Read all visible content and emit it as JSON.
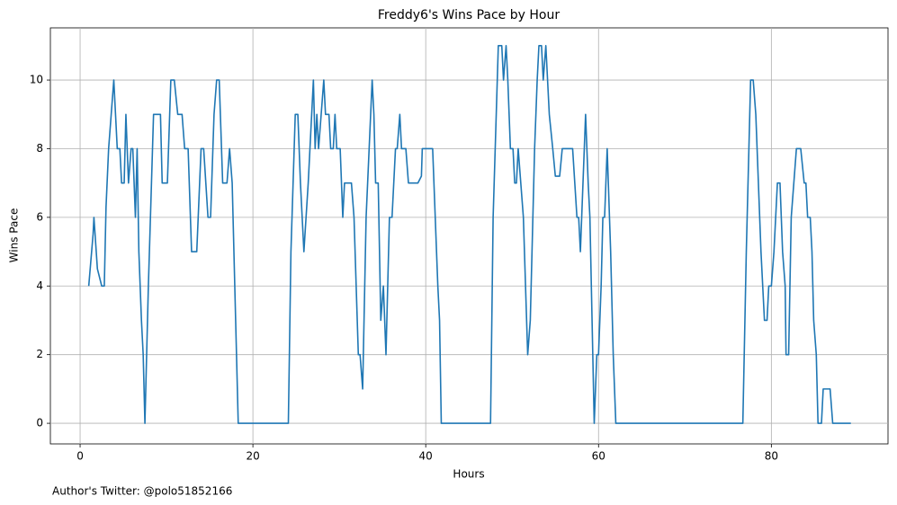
{
  "chart_data": {
    "type": "line",
    "title": "Freddy6's Wins Pace by Hour",
    "xlabel": "Hours",
    "ylabel": "Wins Pace",
    "annotation": "Author's Twitter: @polo51852166",
    "color": "#1f77b4",
    "grid": true,
    "xlim": [
      -3.44,
      93.5
    ],
    "ylim": [
      -0.6,
      11.52
    ],
    "xticks": [
      0,
      20,
      40,
      60,
      80
    ],
    "yticks": [
      0,
      2,
      4,
      6,
      8,
      10
    ],
    "x": [
      1.0,
      1.5,
      1.6,
      2.0,
      2.5,
      2.8,
      3.0,
      3.3,
      3.9,
      4.3,
      4.6,
      4.8,
      5.1,
      5.3,
      5.6,
      5.9,
      6.1,
      6.4,
      6.6,
      6.8,
      7.1,
      7.3,
      7.5,
      7.9,
      8.2,
      8.5,
      9.3,
      9.5,
      10.1,
      10.5,
      10.9,
      11.3,
      11.8,
      12.1,
      12.5,
      12.9,
      13.5,
      14.0,
      14.3,
      14.8,
      15.1,
      15.5,
      15.8,
      16.1,
      16.5,
      17.0,
      17.3,
      17.6,
      18.0,
      18.3,
      24.1,
      24.4,
      24.9,
      25.2,
      25.5,
      25.9,
      26.4,
      27.0,
      27.2,
      27.4,
      27.6,
      28.2,
      28.4,
      28.8,
      29.0,
      29.3,
      29.5,
      29.7,
      30.1,
      30.4,
      30.6,
      31.4,
      31.7,
      32.2,
      32.4,
      32.7,
      33.1,
      33.8,
      34.0,
      34.2,
      34.5,
      34.8,
      35.1,
      35.4,
      35.8,
      36.1,
      36.5,
      36.7,
      37.0,
      37.2,
      37.7,
      38.0,
      39.1,
      39.5,
      39.6,
      40.8,
      41.1,
      41.4,
      41.6,
      41.8,
      47.5,
      47.8,
      48.4,
      48.8,
      49.0,
      49.3,
      49.5,
      49.8,
      50.1,
      50.3,
      50.5,
      50.7,
      51.3,
      51.8,
      52.1,
      52.6,
      52.9,
      53.1,
      53.4,
      53.6,
      53.9,
      54.3,
      54.7,
      55.0,
      55.5,
      55.8,
      57.0,
      57.5,
      57.7,
      57.9,
      58.2,
      58.5,
      58.8,
      59.0,
      59.5,
      59.8,
      60.0,
      60.3,
      60.5,
      60.7,
      61.0,
      61.4,
      61.7,
      62.0,
      76.7,
      77.1,
      77.6,
      77.9,
      78.2,
      78.8,
      79.2,
      79.5,
      79.7,
      80.0,
      80.3,
      80.6,
      80.7,
      81.0,
      81.3,
      81.6,
      81.7,
      82.0,
      82.3,
      82.6,
      82.9,
      83.4,
      83.8,
      84.0,
      84.2,
      84.5,
      84.7,
      84.9,
      85.2,
      85.4,
      85.8,
      86.0,
      86.8,
      87.1,
      89.2
    ],
    "values": [
      4,
      5.5,
      6,
      4.5,
      4,
      4,
      6.3,
      8,
      10,
      8,
      8,
      7,
      7,
      9,
      7,
      8,
      8,
      6,
      8,
      5,
      3,
      2,
      0,
      4,
      6.5,
      9,
      9,
      7,
      7,
      10,
      10,
      9,
      9,
      8,
      8,
      5,
      5,
      8,
      8,
      6,
      6,
      9,
      10,
      10,
      7,
      7,
      8,
      7,
      3,
      0,
      0,
      5,
      9,
      9,
      7,
      5,
      7,
      10,
      8,
      9,
      8,
      10,
      9,
      9,
      8,
      8,
      9,
      8,
      8,
      6,
      7,
      7,
      6,
      2,
      2,
      1,
      6,
      10,
      9,
      7,
      7,
      3,
      4,
      2,
      6,
      6,
      8,
      8,
      9,
      8,
      8,
      7,
      7,
      7.2,
      8,
      8,
      6,
      4,
      3,
      0,
      0,
      6,
      11,
      11,
      10,
      11,
      10,
      8,
      8,
      7,
      7,
      8,
      6,
      2,
      3,
      8,
      10,
      11,
      11,
      10,
      11,
      9,
      8,
      7.2,
      7.2,
      8,
      8,
      6,
      6,
      5,
      7,
      9,
      7,
      6,
      0,
      2,
      2,
      4,
      6,
      6,
      8,
      5,
      2,
      0,
      0,
      5,
      10,
      10,
      9,
      5,
      3,
      3,
      4,
      4,
      5,
      6.5,
      7,
      7,
      5,
      4,
      2,
      2,
      6,
      7,
      8,
      8,
      7,
      7,
      6,
      6,
      5,
      3,
      2,
      0,
      0,
      1,
      1,
      0,
      0
    ]
  }
}
